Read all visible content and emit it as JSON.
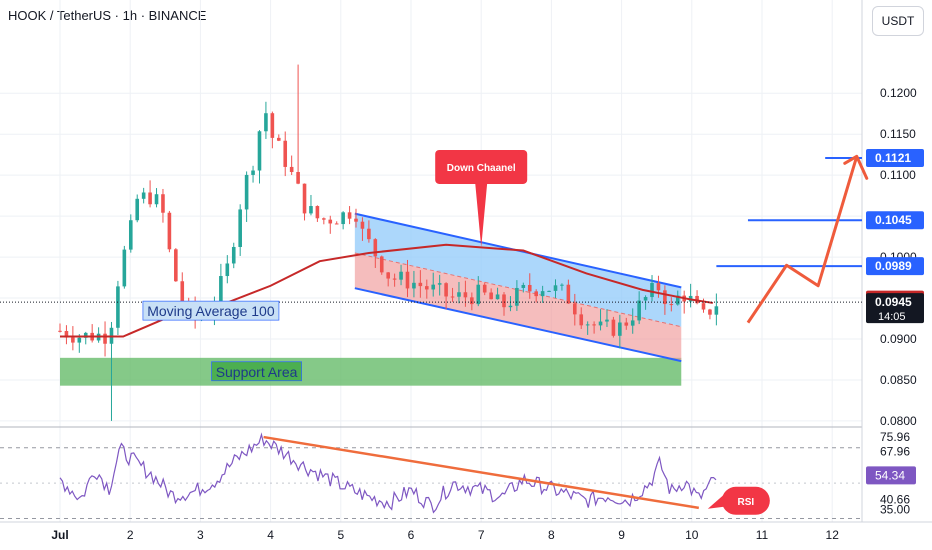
{
  "header": {
    "symbol": "HOOK / TetherUS · 1h · BINANCE",
    "currency": "USDT"
  },
  "colors": {
    "bull": "#26a69a",
    "bear": "#ef5350",
    "ma": "#c62828",
    "channel_line": "#2962ff",
    "channel_upper_fill": "#90caf9",
    "channel_lower_fill": "#ef9a9a",
    "support": "#66bb6a",
    "arrow": "#ef5b3c",
    "rsi": "#7e57c2",
    "rsi_trend": "#ef6c3c"
  },
  "chart_data": [
    {
      "type": "candlestick",
      "title": "HOOK / TetherUS · 1h · BINANCE",
      "ylim": [
        0.0795,
        0.1265
      ],
      "x_ticks": [
        "Jul",
        "2",
        "3",
        "4",
        "5",
        "6",
        "7",
        "8",
        "9",
        "10",
        "11",
        "12"
      ],
      "y_ticks": [
        "0.0800",
        "0.0850",
        "0.0900",
        "0.0950",
        "0.1000",
        "0.1050",
        "0.1100",
        "0.1150",
        "0.1200"
      ],
      "close_path": [
        [
          0.0,
          0.091
        ],
        [
          0.3,
          0.0903
        ],
        [
          0.5,
          0.0905
        ],
        [
          0.7,
          0.0905
        ],
        [
          0.85,
          0.0985
        ],
        [
          1.0,
          0.103
        ],
        [
          1.1,
          0.107
        ],
        [
          1.3,
          0.1075
        ],
        [
          1.45,
          0.106
        ],
        [
          1.6,
          0.0985
        ],
        [
          1.75,
          0.0945
        ],
        [
          1.9,
          0.0925
        ],
        [
          2.05,
          0.0932
        ],
        [
          2.2,
          0.0945
        ],
        [
          2.4,
          0.099
        ],
        [
          2.6,
          0.108
        ],
        [
          2.8,
          0.113
        ],
        [
          2.9,
          0.119
        ],
        [
          3.0,
          0.115
        ],
        [
          3.2,
          0.112
        ],
        [
          3.5,
          0.106
        ],
        [
          3.7,
          0.1045
        ],
        [
          4.0,
          0.105
        ],
        [
          4.2,
          0.106
        ],
        [
          4.3,
          0.103
        ],
        [
          4.45,
          0.101
        ],
        [
          4.7,
          0.0975
        ],
        [
          5.0,
          0.097
        ],
        [
          5.3,
          0.096
        ],
        [
          5.6,
          0.095
        ],
        [
          6.0,
          0.0955
        ],
        [
          6.3,
          0.094
        ],
        [
          6.6,
          0.0958
        ],
        [
          6.9,
          0.0965
        ],
        [
          7.2,
          0.0955
        ],
        [
          7.45,
          0.0925
        ],
        [
          7.7,
          0.0912
        ],
        [
          8.0,
          0.0915
        ],
        [
          8.2,
          0.0935
        ],
        [
          8.4,
          0.0955
        ],
        [
          8.55,
          0.0965
        ],
        [
          8.7,
          0.0935
        ],
        [
          8.85,
          0.0958
        ],
        [
          9.0,
          0.0945
        ],
        [
          9.15,
          0.0925
        ],
        [
          9.3,
          0.094
        ],
        [
          9.37,
          0.0945
        ]
      ],
      "high_wick": {
        "x": 3.35,
        "y": 0.1235
      },
      "low_wick": {
        "x": 0.75,
        "y": 0.08
      },
      "moving_average": {
        "label": "Moving Average 100",
        "points": [
          [
            0.0,
            0.0903
          ],
          [
            0.9,
            0.0903
          ],
          [
            1.5,
            0.0925
          ],
          [
            2.1,
            0.0935
          ],
          [
            3.0,
            0.0965
          ],
          [
            3.7,
            0.0995
          ],
          [
            4.4,
            0.1005
          ],
          [
            5.5,
            0.1015
          ],
          [
            6.6,
            0.1008
          ],
          [
            7.5,
            0.098
          ],
          [
            8.3,
            0.096
          ],
          [
            9.0,
            0.0948
          ],
          [
            9.3,
            0.0944
          ]
        ]
      },
      "price_lines": [
        {
          "label": "0.1121",
          "value": 0.1121,
          "from_x": 10.9,
          "kind": "target"
        },
        {
          "label": "0.1045",
          "value": 0.1045,
          "from_x": 9.8,
          "kind": "target"
        },
        {
          "label": "0.0989",
          "value": 0.0989,
          "from_x": 9.35,
          "kind": "target"
        },
        {
          "label": "0.0948",
          "value": 0.0948,
          "kind": "ma"
        },
        {
          "label": "0.0945",
          "value": 0.0945,
          "kind": "last",
          "sub": "14:05"
        }
      ],
      "channel": {
        "upper": [
          [
            4.2,
            0.1053
          ],
          [
            8.85,
            0.0963
          ]
        ],
        "mid": [
          [
            4.2,
            0.1005
          ],
          [
            8.85,
            0.0915
          ]
        ],
        "lower": [
          [
            4.2,
            0.0962
          ],
          [
            8.85,
            0.0873
          ]
        ]
      },
      "support_zone": {
        "label": "Support Area",
        "x_range": [
          0.0,
          8.85
        ],
        "y_range": [
          0.0843,
          0.0877
        ]
      },
      "annotations": [
        {
          "text": "Down Chaanel",
          "x": 6.0,
          "y": 0.111,
          "pointer": [
            6.0,
            0.1012
          ]
        },
        {
          "text": "Moving Average 100",
          "x": 2.15,
          "y": 0.0934
        },
        {
          "text": "Support Area",
          "x": 2.8,
          "y": 0.086
        }
      ],
      "projection_arrow": [
        [
          9.8,
          0.092
        ],
        [
          10.35,
          0.099
        ],
        [
          10.8,
          0.0965
        ],
        [
          11.35,
          0.1123
        ]
      ]
    },
    {
      "type": "line",
      "title": "RSI",
      "ylim": [
        28,
        80
      ],
      "y_ticks": [
        "75.96",
        "67.96",
        "54.34",
        "40.66",
        "35.00"
      ],
      "levels": [
        70,
        30
      ],
      "series_rsi": [
        [
          0.0,
          52
        ],
        [
          0.3,
          41
        ],
        [
          0.5,
          58
        ],
        [
          0.7,
          47
        ],
        [
          0.85,
          69
        ],
        [
          1.1,
          61
        ],
        [
          1.3,
          55
        ],
        [
          1.6,
          43
        ],
        [
          1.9,
          45
        ],
        [
          2.2,
          51
        ],
        [
          2.5,
          63
        ],
        [
          2.9,
          75
        ],
        [
          3.2,
          67
        ],
        [
          3.5,
          59
        ],
        [
          3.8,
          53
        ],
        [
          4.1,
          47
        ],
        [
          4.4,
          42
        ],
        [
          4.7,
          39
        ],
        [
          5.0,
          46
        ],
        [
          5.3,
          37
        ],
        [
          5.6,
          50
        ],
        [
          6.0,
          46
        ],
        [
          6.3,
          42
        ],
        [
          6.6,
          52
        ],
        [
          6.9,
          48
        ],
        [
          7.2,
          44
        ],
        [
          7.5,
          40
        ],
        [
          7.8,
          43
        ],
        [
          8.1,
          40
        ],
        [
          8.4,
          50
        ],
        [
          8.55,
          61
        ],
        [
          8.7,
          45
        ],
        [
          8.9,
          51
        ],
        [
          9.1,
          41
        ],
        [
          9.37,
          54
        ]
      ],
      "trend_line": [
        [
          2.9,
          76
        ],
        [
          9.1,
          36
        ]
      ],
      "rsi_label": "RSI"
    }
  ]
}
